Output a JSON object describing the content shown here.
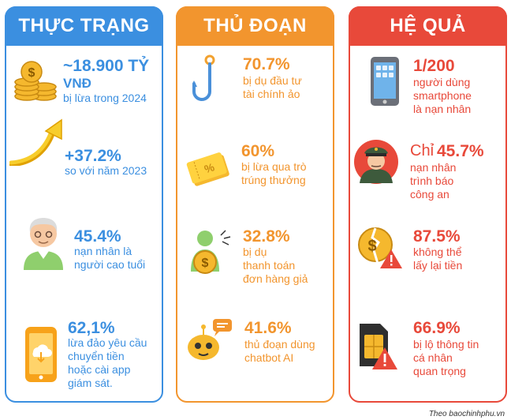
{
  "col1": {
    "title": "THỰC TRẠNG",
    "items": [
      {
        "value": "~18.900 TỶ",
        "value2": "VNĐ",
        "desc": "bị lừa trong 2024"
      },
      {
        "value": "+37.2%",
        "desc": "so với  năm 2023"
      },
      {
        "value": "45.4%",
        "desc1": "nạn nhân là",
        "desc2": "người cao tuổi"
      },
      {
        "value": "62,1%",
        "desc1": "lừa đảo yêu cầu",
        "desc2": "chuyển tiền",
        "desc3": "hoặc cài app",
        "desc4": "giám sát."
      }
    ]
  },
  "col2": {
    "title": "THỦ ĐOẠN",
    "items": [
      {
        "value": "70.7%",
        "desc1": "bị dụ đầu tư",
        "desc2": "tài chính ảo"
      },
      {
        "value": "60%",
        "desc1": "bị lừa qua trò",
        "desc2": "trúng thưởng"
      },
      {
        "value": "32.8%",
        "desc1": "bị dụ",
        "desc2": "thanh toán",
        "desc3": "đơn hàng giả"
      },
      {
        "value": "41.6%",
        "desc1": "thủ đoạn dùng",
        "desc2": "chatbot AI"
      }
    ]
  },
  "col3": {
    "title": "HỆ QUẢ",
    "items": [
      {
        "value": "1/200",
        "desc1": "người dùng",
        "desc2": "smartphone",
        "desc3": "là nạn nhân"
      },
      {
        "prefix": "Chỉ",
        "value": "45.7%",
        "desc1": "nạn nhân",
        "desc2": "trình báo",
        "desc3": "công an"
      },
      {
        "value": "87.5%",
        "desc1": "không thể",
        "desc2": "lấy lại tiền"
      },
      {
        "value": "66.9%",
        "desc1": "bị lộ thông tin",
        "desc2": "cá nhân",
        "desc3": "quan trọng"
      }
    ]
  },
  "credit": "Theo baochinhphu.vn"
}
